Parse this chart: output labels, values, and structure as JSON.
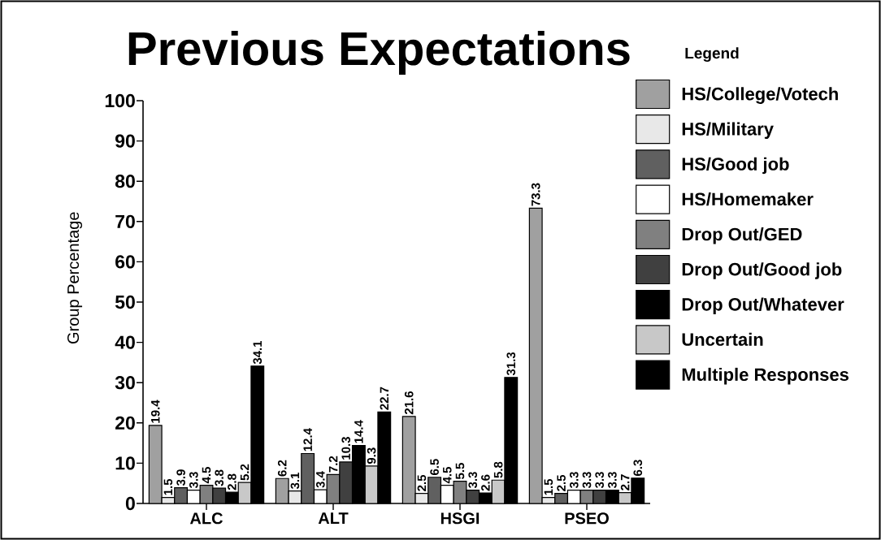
{
  "chart_data": {
    "type": "bar",
    "title": "Previous Expectations",
    "ylabel": "Group Percentage",
    "legend_title": "Legend",
    "categories": [
      "ALC",
      "ALT",
      "HSGI",
      "PSEO"
    ],
    "series": [
      {
        "name": "HS/College/Votech",
        "color": "#a0a0a0",
        "values": [
          19.4,
          6.2,
          21.6,
          73.3
        ]
      },
      {
        "name": "HS/Military",
        "color": "#e8e8e8",
        "values": [
          1.5,
          3.1,
          2.5,
          1.5
        ]
      },
      {
        "name": "HS/Good job",
        "color": "#606060",
        "values": [
          3.9,
          12.4,
          6.5,
          2.5
        ]
      },
      {
        "name": "HS/Homemaker",
        "color": "#ffffff",
        "values": [
          3.3,
          3.4,
          4.5,
          3.3
        ]
      },
      {
        "name": "Drop Out/GED",
        "color": "#808080",
        "values": [
          4.5,
          7.2,
          5.5,
          3.3
        ]
      },
      {
        "name": "Drop Out/Good job",
        "color": "#404040",
        "values": [
          3.8,
          10.3,
          3.3,
          3.3
        ]
      },
      {
        "name": "Drop Out/Whatever",
        "color": "#000000",
        "values": [
          2.8,
          14.4,
          2.6,
          3.3
        ]
      },
      {
        "name": "Uncertain",
        "color": "#c8c8c8",
        "values": [
          5.2,
          9.3,
          5.8,
          2.7
        ]
      },
      {
        "name": "Multiple Responses",
        "color": "#000000",
        "values": [
          34.1,
          22.7,
          31.3,
          6.3
        ]
      }
    ],
    "ylim": [
      0,
      100
    ],
    "yticks": [
      0,
      10,
      20,
      30,
      40,
      50,
      60,
      70,
      80,
      90,
      100
    ],
    "legend": "right",
    "data_labels": true
  }
}
